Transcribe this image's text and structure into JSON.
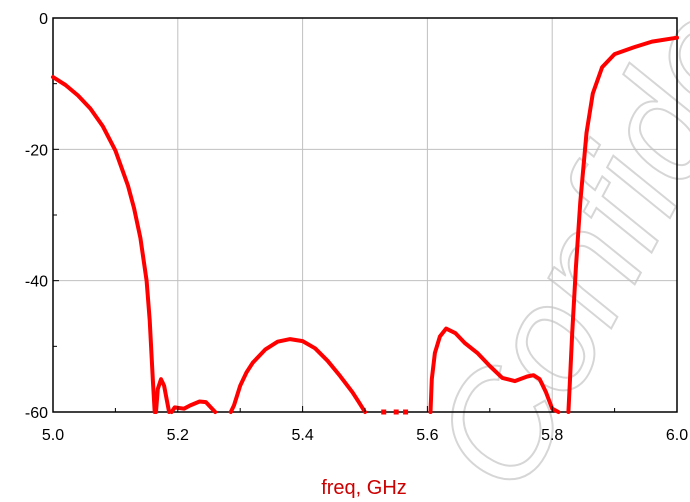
{
  "watermark": "Confidential",
  "chart_data": {
    "type": "line",
    "title": "",
    "xlabel": "freq, GHz",
    "ylabel": "",
    "xlim": [
      5.0,
      6.0
    ],
    "ylim": [
      -60,
      0
    ],
    "grid": true,
    "xticks": [
      5.0,
      5.2,
      5.4,
      5.6,
      5.8,
      6.0
    ],
    "xtick_labels": [
      "5.0",
      "5.2",
      "5.4",
      "5.6",
      "5.8",
      "6.0"
    ],
    "yticks": [
      0,
      -20,
      -40,
      -60
    ],
    "ytick_labels": [
      "0",
      "-20",
      "-40",
      "-60"
    ],
    "colors": {
      "series": "#ff0000",
      "xlabel": "#cc0000",
      "grid": "#c0c0c0",
      "axes": "#000000"
    },
    "series": [
      {
        "segments": [
          [
            [
              5.0,
              -9.0
            ],
            [
              5.02,
              -10.2
            ],
            [
              5.04,
              -11.8
            ],
            [
              5.06,
              -13.8
            ],
            [
              5.08,
              -16.5
            ],
            [
              5.1,
              -20.2
            ],
            [
              5.12,
              -25.5
            ],
            [
              5.13,
              -29.0
            ],
            [
              5.14,
              -33.5
            ],
            [
              5.15,
              -40.0
            ],
            [
              5.155,
              -46.0
            ],
            [
              5.16,
              -55.0
            ],
            [
              5.163,
              -60.0
            ]
          ],
          [
            [
              5.165,
              -60.0
            ],
            [
              5.168,
              -56.5
            ],
            [
              5.173,
              -55.0
            ],
            [
              5.178,
              -56.0
            ],
            [
              5.183,
              -58.5
            ],
            [
              5.186,
              -60.0
            ]
          ],
          [
            [
              5.19,
              -60.0
            ],
            [
              5.195,
              -59.3
            ],
            [
              5.21,
              -59.5
            ],
            [
              5.22,
              -59.0
            ],
            [
              5.235,
              -58.4
            ],
            [
              5.245,
              -58.5
            ],
            [
              5.255,
              -59.5
            ],
            [
              5.26,
              -60.0
            ]
          ],
          [
            [
              5.285,
              -60.0
            ],
            [
              5.29,
              -59.0
            ],
            [
              5.3,
              -56.0
            ],
            [
              5.31,
              -54.0
            ],
            [
              5.32,
              -52.5
            ],
            [
              5.34,
              -50.5
            ],
            [
              5.36,
              -49.3
            ],
            [
              5.38,
              -48.9
            ],
            [
              5.4,
              -49.2
            ],
            [
              5.42,
              -50.3
            ],
            [
              5.44,
              -52.2
            ],
            [
              5.46,
              -54.5
            ],
            [
              5.48,
              -57.0
            ],
            [
              5.49,
              -58.5
            ],
            [
              5.5,
              -60.0
            ]
          ],
          [
            [
              5.605,
              -60.0
            ],
            [
              5.607,
              -55.0
            ],
            [
              5.612,
              -51.0
            ],
            [
              5.62,
              -48.5
            ],
            [
              5.63,
              -47.3
            ],
            [
              5.645,
              -48.0
            ],
            [
              5.66,
              -49.5
            ],
            [
              5.68,
              -51.0
            ],
            [
              5.7,
              -53.0
            ],
            [
              5.72,
              -54.8
            ],
            [
              5.74,
              -55.3
            ],
            [
              5.76,
              -54.6
            ],
            [
              5.77,
              -54.4
            ],
            [
              5.78,
              -55.0
            ],
            [
              5.79,
              -57.0
            ],
            [
              5.8,
              -59.5
            ],
            [
              5.81,
              -60.0
            ]
          ],
          [
            [
              5.826,
              -60.0
            ],
            [
              5.828,
              -56.0
            ],
            [
              5.832,
              -48.0
            ],
            [
              5.838,
              -38.0
            ],
            [
              5.845,
              -28.0
            ],
            [
              5.855,
              -17.5
            ],
            [
              5.865,
              -11.5
            ],
            [
              5.88,
              -7.5
            ],
            [
              5.9,
              -5.5
            ],
            [
              5.93,
              -4.5
            ],
            [
              5.96,
              -3.6
            ],
            [
              6.0,
              -3.0
            ]
          ]
        ],
        "dots": [
          [
            5.53,
            -60.0
          ],
          [
            5.55,
            -60.0
          ],
          [
            5.565,
            -60.0
          ]
        ]
      }
    ]
  }
}
